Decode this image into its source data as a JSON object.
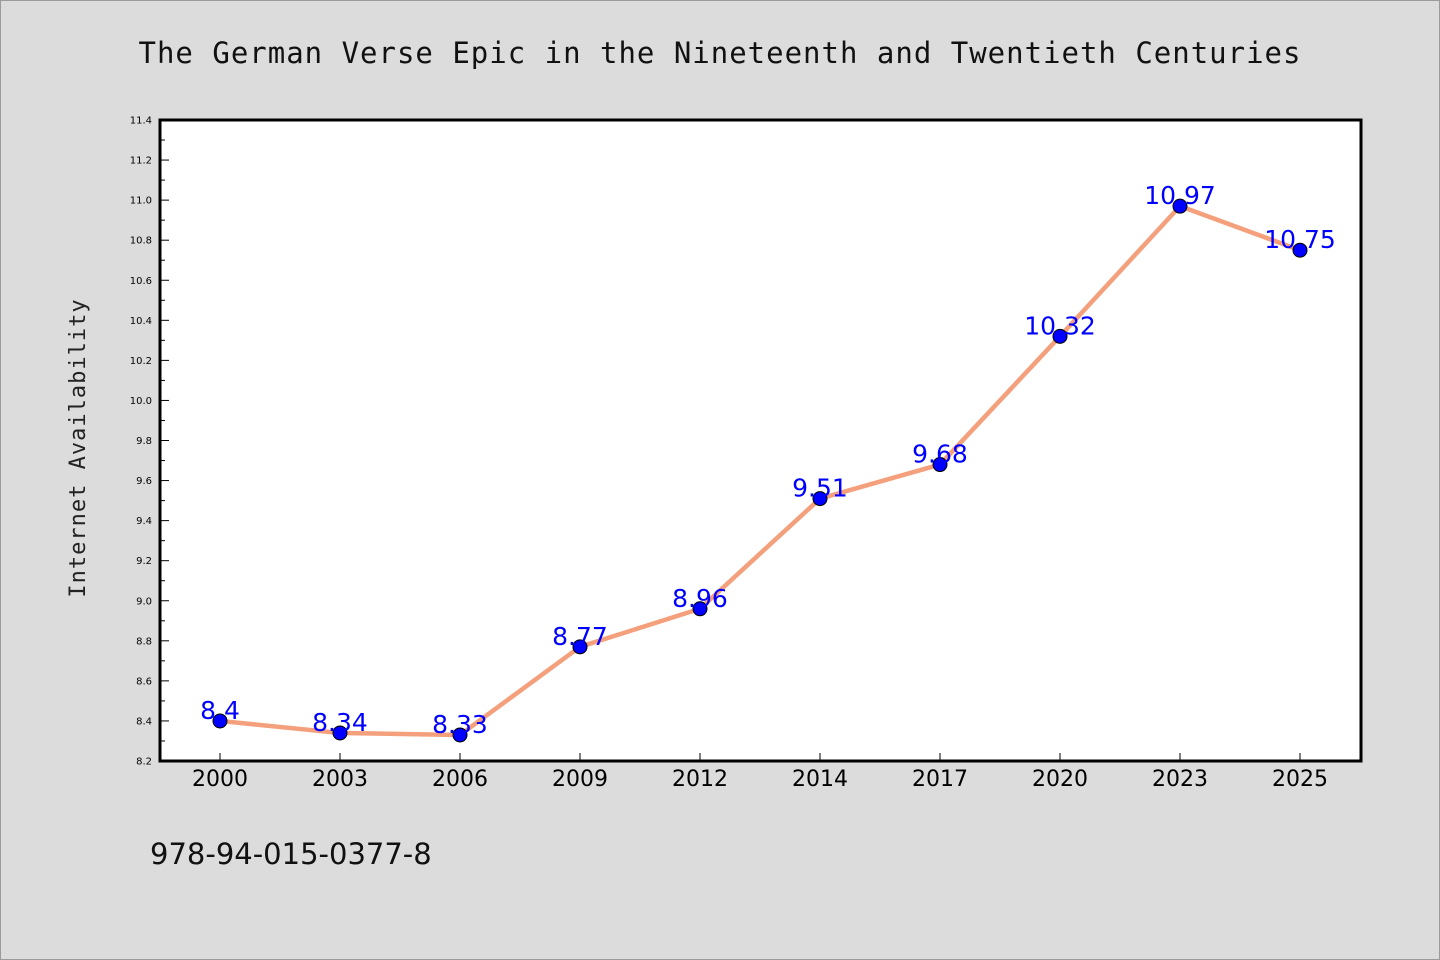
{
  "footer": {
    "isbn": "978-94-015-0377-8"
  },
  "chart_data": {
    "type": "line",
    "title": "The German Verse Epic in the Nineteenth and Twentieth Centuries",
    "xlabel": "",
    "ylabel": "Internet Availability",
    "categories": [
      "2000",
      "2003",
      "2006",
      "2009",
      "2012",
      "2014",
      "2017",
      "2020",
      "2023",
      "2025"
    ],
    "values": [
      8.4,
      8.34,
      8.33,
      8.77,
      8.96,
      9.51,
      9.68,
      10.32,
      10.97,
      10.75
    ],
    "data_labels": [
      "8.4",
      "8.34",
      "8.33",
      "8.77",
      "8.96",
      "9.51",
      "9.68",
      "10.32",
      "10.97",
      "10.75"
    ],
    "ylim": [
      8.2,
      11.4
    ],
    "yticks": [
      8.2,
      8.4,
      8.6,
      8.8,
      9.0,
      9.2,
      9.4,
      9.6,
      9.8,
      10.0,
      10.2,
      10.4,
      10.6,
      10.8,
      11.0,
      11.2,
      11.4
    ],
    "grid": false,
    "legend": "none",
    "colors": {
      "line": "#f4a07c",
      "marker": "#0000ff",
      "data_label": "#0000ff",
      "background": "#dcdcdc",
      "plot_background": "#ffffff"
    }
  }
}
